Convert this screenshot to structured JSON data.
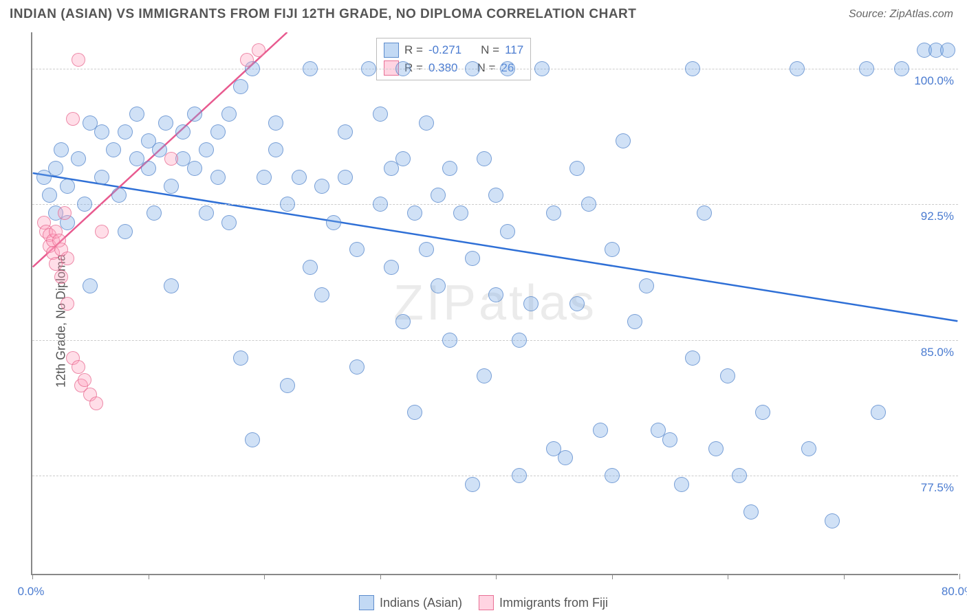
{
  "header": {
    "title": "INDIAN (ASIAN) VS IMMIGRANTS FROM FIJI 12TH GRADE, NO DIPLOMA CORRELATION CHART",
    "source": "Source: ZipAtlas.com"
  },
  "watermark": "ZIPatlas",
  "chart": {
    "type": "scatter",
    "y_axis_label": "12th Grade, No Diploma",
    "xlim": [
      0,
      80
    ],
    "ylim": [
      72,
      102
    ],
    "x_ticks": [
      0,
      10,
      20,
      30,
      40,
      50,
      60,
      70,
      80
    ],
    "x_tick_labels": {
      "0": "0.0%",
      "80": "80.0%"
    },
    "y_gridlines": [
      77.5,
      85.0,
      92.5,
      100.0
    ],
    "y_tick_labels": [
      "77.5%",
      "85.0%",
      "92.5%",
      "100.0%"
    ],
    "grid_color": "#cccccc",
    "axis_color": "#888888",
    "label_color": "#555555",
    "tick_label_color": "#4a7bd0",
    "background_color": "#ffffff",
    "marker_radius_blue": 11,
    "marker_radius_pink": 10,
    "series_blue": {
      "name": "Indians (Asian)",
      "fill": "rgba(120,170,230,0.35)",
      "stroke": "rgba(80,130,200,0.7)",
      "trend_color": "#2e6fd6",
      "trend_width": 2.5,
      "trend": {
        "x1": 0,
        "y1": 94.2,
        "x2": 80,
        "y2": 86.0
      },
      "R": "-0.271",
      "N": "117",
      "points": [
        [
          1,
          94
        ],
        [
          1.5,
          93
        ],
        [
          2,
          94.5
        ],
        [
          2,
          92
        ],
        [
          2.5,
          95.5
        ],
        [
          3,
          93.5
        ],
        [
          3,
          91.5
        ],
        [
          4,
          95
        ],
        [
          4.5,
          92.5
        ],
        [
          5,
          97
        ],
        [
          5,
          88
        ],
        [
          6,
          96.5
        ],
        [
          6,
          94
        ],
        [
          7,
          95.5
        ],
        [
          7.5,
          93
        ],
        [
          8,
          96.5
        ],
        [
          8,
          91
        ],
        [
          9,
          95
        ],
        [
          9,
          97.5
        ],
        [
          10,
          96
        ],
        [
          10,
          94.5
        ],
        [
          10.5,
          92
        ],
        [
          11,
          95.5
        ],
        [
          11.5,
          97
        ],
        [
          12,
          93.5
        ],
        [
          12,
          88
        ],
        [
          13,
          95
        ],
        [
          13,
          96.5
        ],
        [
          14,
          94.5
        ],
        [
          14,
          97.5
        ],
        [
          15,
          95.5
        ],
        [
          15,
          92
        ],
        [
          16,
          96.5
        ],
        [
          16,
          94
        ],
        [
          17,
          97.5
        ],
        [
          17,
          91.5
        ],
        [
          18,
          99
        ],
        [
          18,
          84
        ],
        [
          19,
          100
        ],
        [
          19,
          79.5
        ],
        [
          20,
          94
        ],
        [
          21,
          95.5
        ],
        [
          21,
          97
        ],
        [
          22,
          92.5
        ],
        [
          22,
          82.5
        ],
        [
          23,
          94
        ],
        [
          24,
          100
        ],
        [
          24,
          89
        ],
        [
          25,
          93.5
        ],
        [
          25,
          87.5
        ],
        [
          26,
          91.5
        ],
        [
          27,
          94
        ],
        [
          27,
          96.5
        ],
        [
          28,
          90
        ],
        [
          28,
          83.5
        ],
        [
          29,
          100
        ],
        [
          30,
          97.5
        ],
        [
          30,
          92.5
        ],
        [
          31,
          94.5
        ],
        [
          31,
          89
        ],
        [
          32,
          100
        ],
        [
          32,
          95
        ],
        [
          32,
          86
        ],
        [
          33,
          92
        ],
        [
          33,
          81
        ],
        [
          34,
          97
        ],
        [
          34,
          90
        ],
        [
          35,
          93
        ],
        [
          35,
          88
        ],
        [
          36,
          94.5
        ],
        [
          36,
          85
        ],
        [
          37,
          92
        ],
        [
          38,
          100
        ],
        [
          38,
          89.5
        ],
        [
          38,
          77
        ],
        [
          39,
          95
        ],
        [
          39,
          83
        ],
        [
          40,
          93
        ],
        [
          40,
          87.5
        ],
        [
          41,
          100
        ],
        [
          41,
          91
        ],
        [
          42,
          77.5
        ],
        [
          42,
          85
        ],
        [
          43,
          87
        ],
        [
          44,
          100
        ],
        [
          45,
          92
        ],
        [
          45,
          79
        ],
        [
          46,
          78.5
        ],
        [
          47,
          94.5
        ],
        [
          47,
          87
        ],
        [
          48,
          92.5
        ],
        [
          49,
          80
        ],
        [
          50,
          77.5
        ],
        [
          50,
          90
        ],
        [
          51,
          96
        ],
        [
          53,
          88
        ],
        [
          54,
          80
        ],
        [
          55,
          79.5
        ],
        [
          56,
          77
        ],
        [
          57,
          84
        ],
        [
          57,
          100
        ],
        [
          59,
          79
        ],
        [
          60,
          83
        ],
        [
          61,
          77.5
        ],
        [
          62,
          75.5
        ],
        [
          63,
          81
        ],
        [
          66,
          100
        ],
        [
          67,
          79
        ],
        [
          69,
          75
        ],
        [
          72,
          100
        ],
        [
          73,
          81
        ],
        [
          75,
          100
        ],
        [
          77,
          101
        ],
        [
          78,
          101
        ],
        [
          79,
          101
        ],
        [
          52,
          86
        ],
        [
          58,
          92
        ]
      ]
    },
    "series_pink": {
      "name": "Immigrants from Fiji",
      "fill": "rgba(255,160,190,0.35)",
      "stroke": "rgba(230,100,140,0.7)",
      "trend_color": "#e85a8f",
      "trend_width": 2.5,
      "trend": {
        "x1": 0,
        "y1": 89.0,
        "x2": 22,
        "y2": 102.0
      },
      "R": "0.380",
      "N": "26",
      "points": [
        [
          1.0,
          91.5
        ],
        [
          1.2,
          91.0
        ],
        [
          1.5,
          90.8
        ],
        [
          1.5,
          90.2
        ],
        [
          1.8,
          90.5
        ],
        [
          1.8,
          89.8
        ],
        [
          2.0,
          91.0
        ],
        [
          2.0,
          89.2
        ],
        [
          2.3,
          90.5
        ],
        [
          2.5,
          90.0
        ],
        [
          2.5,
          88.5
        ],
        [
          2.8,
          92.0
        ],
        [
          3.0,
          89.5
        ],
        [
          3.0,
          87.0
        ],
        [
          3.5,
          97.2
        ],
        [
          3.5,
          84.0
        ],
        [
          4.0,
          100.5
        ],
        [
          4.0,
          83.5
        ],
        [
          4.2,
          82.5
        ],
        [
          4.5,
          82.8
        ],
        [
          5.0,
          82.0
        ],
        [
          5.5,
          81.5
        ],
        [
          6.0,
          91.0
        ],
        [
          12.0,
          95.0
        ],
        [
          18.5,
          100.5
        ],
        [
          19.5,
          101.0
        ]
      ]
    },
    "legend_top_labels": {
      "R": "R =",
      "N": "N ="
    },
    "legend_bottom": [
      {
        "label": "Indians (Asian)",
        "swatch": "blue"
      },
      {
        "label": "Immigrants from Fiji",
        "swatch": "pink"
      }
    ]
  }
}
